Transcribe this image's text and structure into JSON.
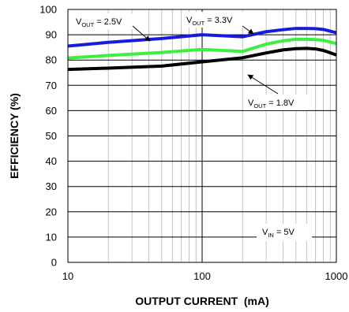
{
  "chart_data": {
    "type": "line",
    "title": "",
    "xlabel": "OUTPUT CURRENT  (mA)",
    "ylabel": "EFFICIENCY (%)",
    "xscale": "log",
    "xlim": [
      10,
      1000
    ],
    "ylim": [
      0,
      100
    ],
    "x_ticks": [
      "10",
      "100",
      "1000"
    ],
    "y_ticks": [
      "0",
      "10",
      "20",
      "30",
      "40",
      "50",
      "60",
      "70",
      "80",
      "90",
      "100"
    ],
    "grid": true,
    "series": [
      {
        "name": "VOUT = 3.3V",
        "color": "#1a1adf",
        "x": [
          10,
          20,
          50,
          100,
          200,
          300,
          400,
          500,
          600,
          700,
          800,
          1000
        ],
        "y": [
          85.5,
          87.0,
          88.5,
          90.0,
          89.2,
          91.2,
          92.0,
          92.5,
          92.5,
          92.4,
          92.1,
          90.8
        ]
      },
      {
        "name": "VOUT = 2.5V",
        "color": "#3df03d",
        "x": [
          10,
          20,
          50,
          100,
          200,
          300,
          400,
          500,
          600,
          700,
          800,
          1000
        ],
        "y": [
          80.8,
          81.8,
          83.0,
          84.2,
          83.4,
          86.3,
          87.6,
          88.2,
          88.2,
          88.1,
          87.8,
          86.5
        ]
      },
      {
        "name": "VOUT = 1.8V",
        "color": "#000000",
        "x": [
          10,
          20,
          50,
          100,
          200,
          300,
          400,
          500,
          600,
          700,
          800,
          1000
        ],
        "y": [
          76.3,
          76.8,
          77.6,
          79.3,
          80.9,
          82.8,
          84.0,
          84.5,
          84.6,
          84.4,
          83.8,
          82.0
        ]
      }
    ],
    "annotations": [
      {
        "main": "V",
        "sub": "OUT",
        "rest": " = 2.5V"
      },
      {
        "main": "V",
        "sub": "OUT",
        "rest": " = 3.3V"
      },
      {
        "main": "V",
        "sub": "OUT",
        "rest": " = 1.8V"
      },
      {
        "main": "V",
        "sub": "IN",
        "rest": " = 5V"
      }
    ]
  }
}
